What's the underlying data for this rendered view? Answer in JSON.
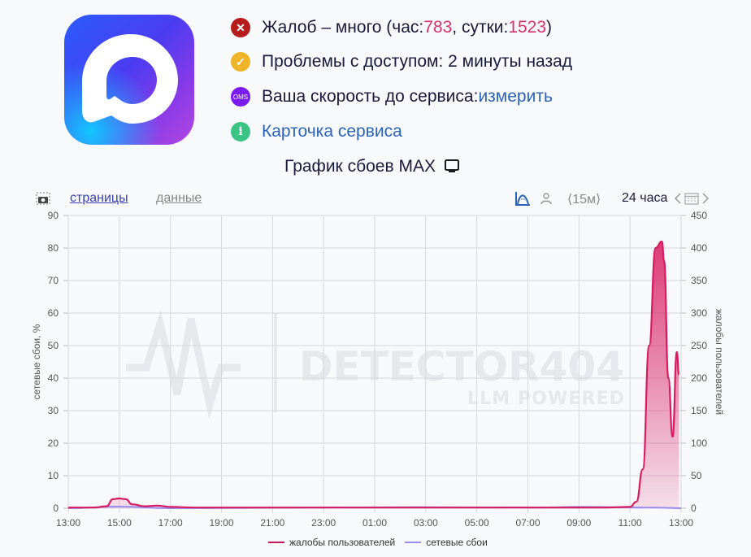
{
  "status": {
    "complaints": {
      "prefix": "Жалоб – много (час: ",
      "hour": "783",
      "mid": ", сутки: ",
      "day": "1523",
      "suffix": ")",
      "icon": "close-icon",
      "color": "#b71c1c"
    },
    "access": {
      "text": "Проблемы с доступом: 2 минуты назад",
      "icon": "check-icon",
      "color": "#f0b429"
    },
    "speed": {
      "prefix": "Ваша скорость до сервиса: ",
      "link": "измерить",
      "icon": "oms-icon",
      "icon_text": "OMS",
      "color": "#7a1cf0"
    },
    "card": {
      "link": "Карточка сервиса",
      "icon": "info-icon",
      "color": "#3cc485"
    }
  },
  "chart_title": "График сбоев MAX",
  "toolbar": {
    "tab_pages": "страницы",
    "tab_data": "данные",
    "interval": "⟨15м⟩",
    "period": "24 часа"
  },
  "watermark": {
    "main": "DETECTOR404",
    "sub": "LLM POWERED"
  },
  "legend": {
    "complaints": "жалобы пользователей",
    "outages": "сетевые сбои"
  },
  "colors": {
    "complaints": "#d81b60",
    "outages": "#9b8cf0",
    "accent": "#d6336c",
    "link": "#2b63b8"
  },
  "chart_data": {
    "type": "area",
    "title": "График сбоев MAX",
    "x_ticks": [
      "13:00",
      "15:00",
      "17:00",
      "19:00",
      "21:00",
      "23:00",
      "01:00",
      "03:00",
      "05:00",
      "07:00",
      "09:00",
      "11:00",
      "13:00"
    ],
    "ylabel_left": "сетевые сбои, %",
    "ylabel_right": "жалобы пользователей",
    "ylim_left": [
      0,
      90
    ],
    "ylim_right": [
      0,
      450
    ],
    "yticks_left": [
      0,
      10,
      20,
      30,
      40,
      50,
      60,
      70,
      80,
      90
    ],
    "yticks_right": [
      0,
      50,
      100,
      150,
      200,
      250,
      300,
      350,
      400,
      450
    ],
    "series": [
      {
        "name": "жалобы пользователей",
        "axis": "right",
        "x": [
          "13:00",
          "14:00",
          "14:30",
          "14:45",
          "15:00",
          "15:15",
          "15:30",
          "16:00",
          "16:30",
          "17:00",
          "18:00",
          "20:00",
          "22:00",
          "00:00",
          "02:00",
          "04:00",
          "06:00",
          "08:00",
          "10:00",
          "11:00",
          "11:15",
          "11:30",
          "11:45",
          "12:00",
          "12:15",
          "12:20",
          "12:30",
          "12:40",
          "12:50",
          "12:55"
        ],
        "values": [
          1,
          1,
          3,
          14,
          15,
          14,
          6,
          3,
          4,
          2,
          1,
          1,
          1,
          1,
          1,
          1,
          1,
          1,
          1,
          2,
          10,
          60,
          250,
          400,
          410,
          380,
          200,
          110,
          240,
          205
        ]
      },
      {
        "name": "сетевые сбои",
        "axis": "left",
        "x": [
          "13:00",
          "15:00",
          "17:00",
          "02:30",
          "07:30",
          "09:00",
          "12:00",
          "13:00"
        ],
        "values": [
          0,
          0.5,
          0,
          0.3,
          0.2,
          0.4,
          0.2,
          0
        ]
      }
    ],
    "grid": true,
    "legend_position": "bottom"
  }
}
